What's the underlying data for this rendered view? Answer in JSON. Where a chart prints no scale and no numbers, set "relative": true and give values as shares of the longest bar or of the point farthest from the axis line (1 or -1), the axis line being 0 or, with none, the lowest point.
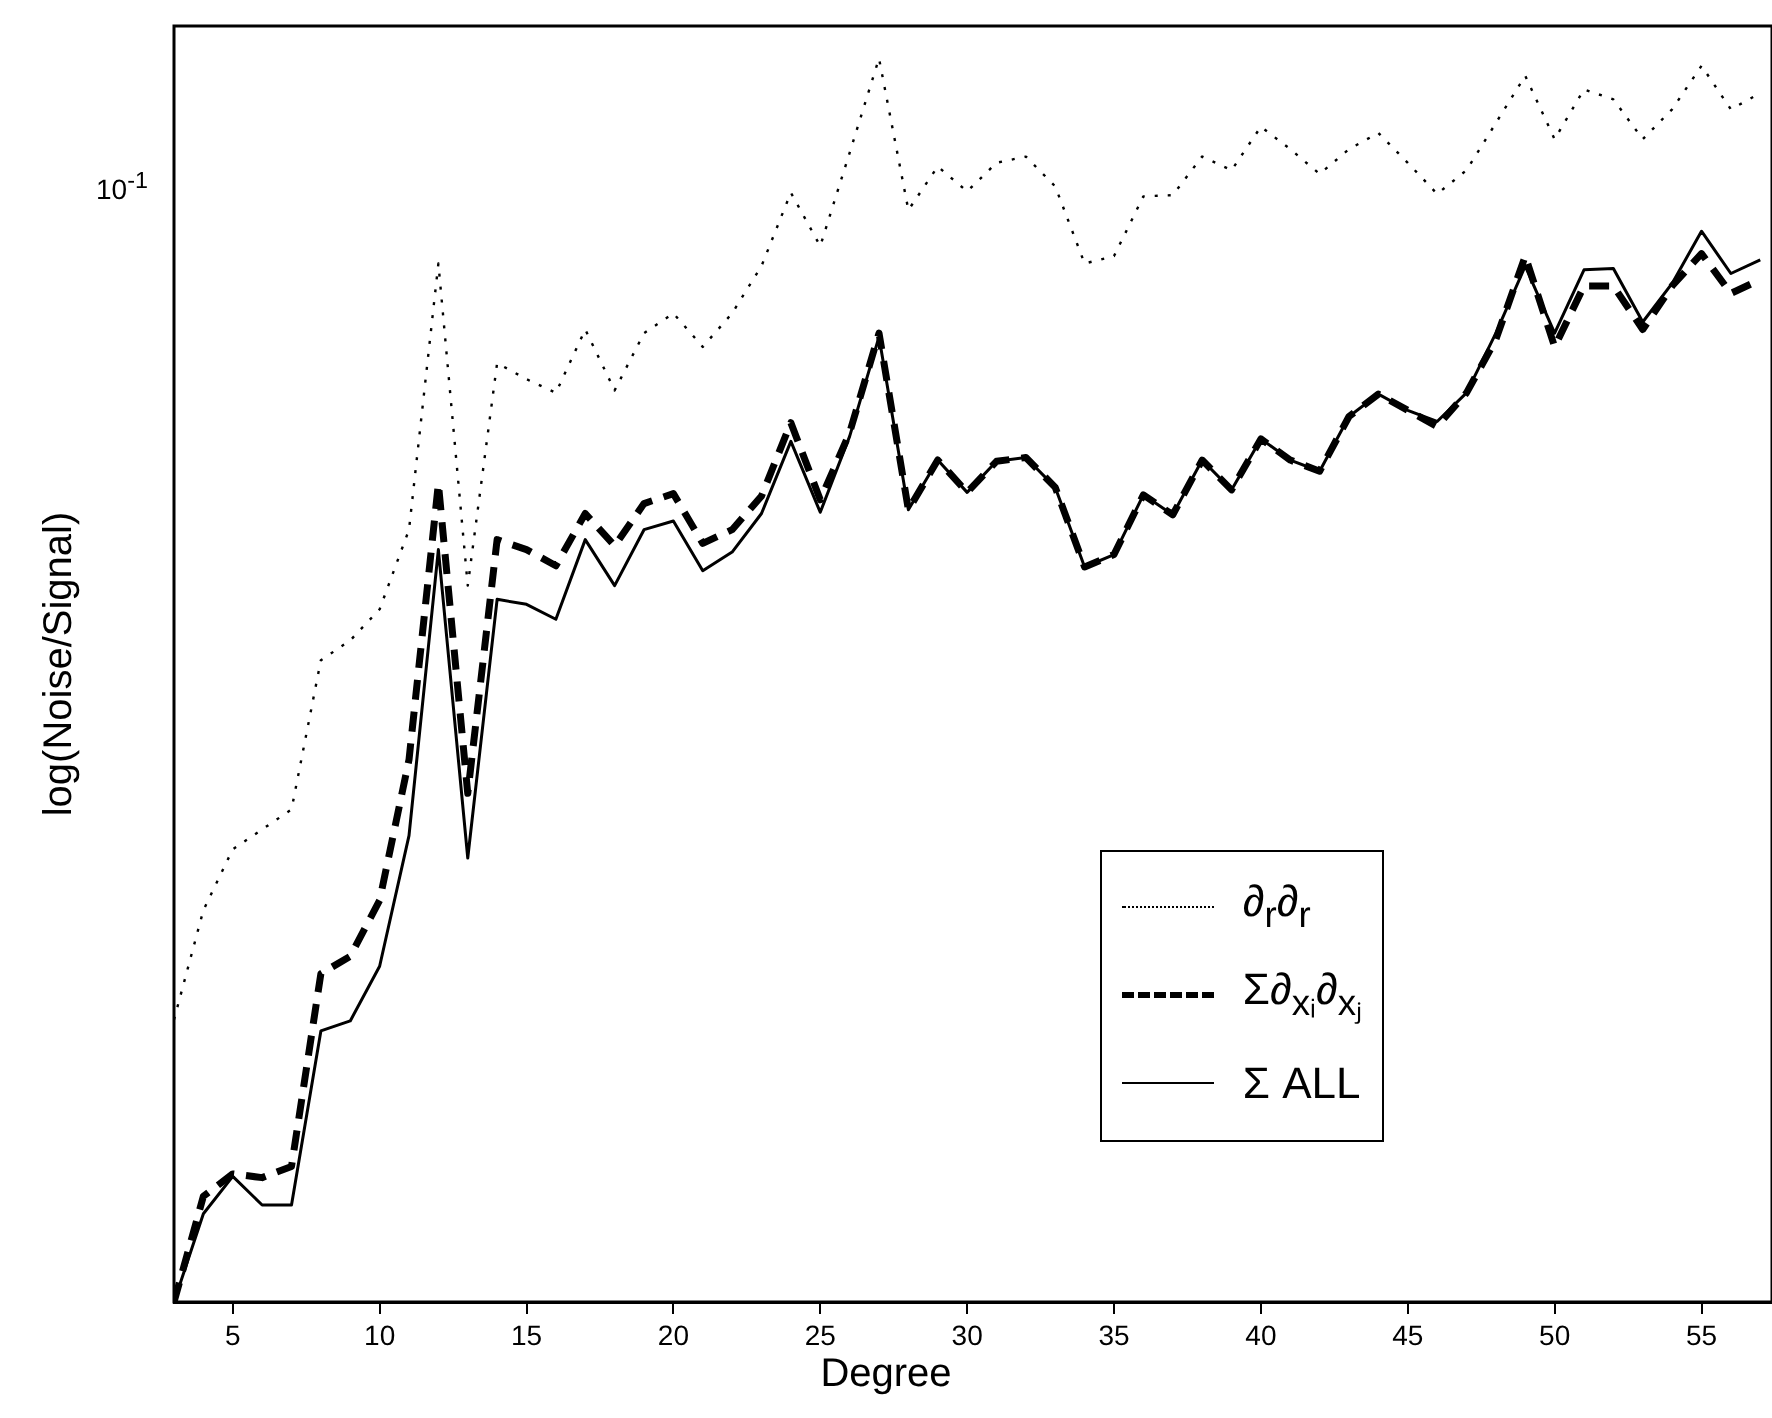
{
  "chart_data": {
    "type": "line",
    "relative": true,
    "xlabel": "Degree",
    "ylabel": "log(Noise/Signal)",
    "legend": "bottom right",
    "grid": false,
    "annotations": [
      "10$^{-1}$"
    ],
    "x": [
      3,
      4,
      5,
      6,
      7,
      8,
      9,
      10,
      11,
      12,
      13,
      14,
      15,
      16,
      17,
      18,
      19,
      20,
      21,
      22,
      23,
      24,
      25,
      26,
      27,
      28,
      29,
      30,
      31,
      32,
      33,
      34,
      35,
      36,
      37,
      38,
      39,
      40,
      41,
      42,
      43,
      44,
      45,
      46,
      47,
      48,
      49,
      50,
      51,
      52,
      53,
      54,
      55,
      56,
      57
    ],
    "xlim": [
      3,
      57.4
    ],
    "xticks": [
      5,
      10,
      15,
      20,
      25,
      30,
      35,
      40,
      45,
      50,
      55
    ],
    "series": [
      {
        "name": "∂$_{r}$∂$_{r}$",
        "color": "#000000",
        "line_style": "dotted",
        "values": [
          0.227,
          0.315,
          0.364,
          0.38,
          0.396,
          0.516,
          0.532,
          0.557,
          0.621,
          0.835,
          0.576,
          0.755,
          0.742,
          0.731,
          0.782,
          0.733,
          0.779,
          0.795,
          0.768,
          0.795,
          0.833,
          0.892,
          0.849,
          0.924,
          1,
          0.878,
          0.913,
          0.893,
          0.916,
          0.921,
          0.897,
          0.835,
          0.841,
          0.889,
          0.89,
          0.921,
          0.91,
          0.945,
          0.927,
          0.907,
          0.927,
          0.94,
          0.916,
          0.891,
          0.91,
          0.948,
          0.986,
          0.935,
          0.975,
          0.967,
          0.935,
          0.959,
          0.994,
          0.959,
          0.972
        ]
      },
      {
        "name": "Σ∂$_{xᵢ}$∂$_{xⱼ}$",
        "color": "#000000",
        "line_style": "dashed",
        "values": [
          0,
          0.085,
          0.103,
          0.1,
          0.109,
          0.264,
          0.278,
          0.323,
          0.436,
          0.658,
          0.409,
          0.613,
          0.605,
          0.592,
          0.634,
          0.608,
          0.642,
          0.65,
          0.61,
          0.621,
          0.648,
          0.707,
          0.645,
          0.699,
          0.779,
          0.637,
          0.677,
          0.651,
          0.676,
          0.679,
          0.655,
          0.591,
          0.601,
          0.649,
          0.633,
          0.677,
          0.653,
          0.694,
          0.677,
          0.668,
          0.712,
          0.73,
          0.717,
          0.704,
          0.731,
          0.774,
          0.841,
          0.768,
          0.817,
          0.817,
          0.782,
          0.817,
          0.843,
          0.811,
          0.822
        ]
      },
      {
        "name": "Σ ALL",
        "color": "#000000",
        "line_style": "solid",
        "values": [
          0,
          0.071,
          0.101,
          0.078,
          0.078,
          0.218,
          0.226,
          0.27,
          0.375,
          0.605,
          0.357,
          0.565,
          0.561,
          0.549,
          0.613,
          0.576,
          0.621,
          0.628,
          0.588,
          0.603,
          0.634,
          0.692,
          0.635,
          0.696,
          0.776,
          0.637,
          0.677,
          0.651,
          0.676,
          0.679,
          0.655,
          0.591,
          0.601,
          0.649,
          0.633,
          0.677,
          0.653,
          0.694,
          0.677,
          0.668,
          0.712,
          0.73,
          0.717,
          0.708,
          0.731,
          0.779,
          0.833,
          0.779,
          0.83,
          0.831,
          0.788,
          0.819,
          0.861,
          0.827,
          0.838
        ]
      }
    ]
  }
}
